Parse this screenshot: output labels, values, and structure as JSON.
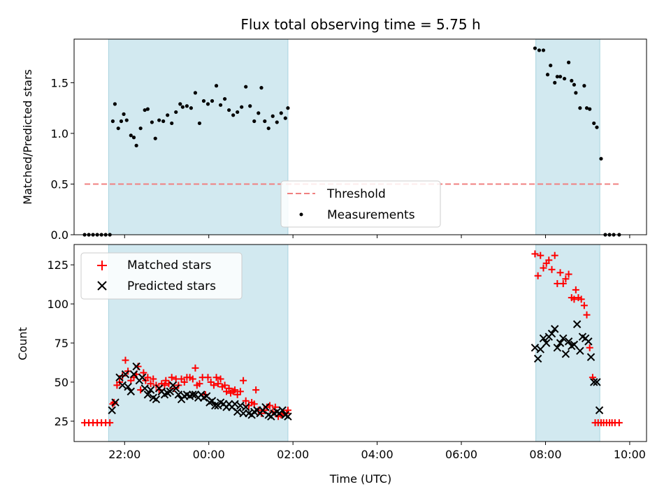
{
  "chart_data": [
    {
      "type": "scatter",
      "title": "Flux total observing time = 5.75 h",
      "xlabel": "",
      "ylabel": "Matched/Predicted stars",
      "x_unit": "hours since 2024-01-01 00:00 UTC",
      "xlim": [
        -3.2,
        10.4
      ],
      "ylim": [
        0,
        1.93
      ],
      "yticks": [
        0.0,
        0.5,
        1.0,
        1.5
      ],
      "ytick_labels": [
        "0.0",
        "0.5",
        "1.0",
        "1.5"
      ],
      "shaded_intervals": [
        [
          -2.38,
          1.88
        ],
        [
          7.77,
          9.29
        ]
      ],
      "shade_color": "#d2e9f0",
      "legend_position": "lower center",
      "series": [
        {
          "name": "Threshold",
          "kind": "dashed-line",
          "color": "#f08080",
          "x": [
            -2.95,
            9.75
          ],
          "y": [
            0.5,
            0.5
          ]
        },
        {
          "name": "Measurements",
          "kind": "dots",
          "color": "#000000",
          "x": [
            -2.95,
            -2.85,
            -2.75,
            -2.65,
            -2.55,
            -2.45,
            -2.35,
            -2.28,
            -2.23,
            -2.15,
            -2.08,
            -2.02,
            -1.95,
            -1.85,
            -1.78,
            -1.72,
            -1.62,
            -1.52,
            -1.45,
            -1.35,
            -1.27,
            -1.18,
            -1.08,
            -0.98,
            -0.88,
            -0.78,
            -0.68,
            -0.62,
            -0.52,
            -0.42,
            -0.32,
            -0.22,
            -0.12,
            -0.02,
            0.08,
            0.18,
            0.28,
            0.38,
            0.48,
            0.58,
            0.68,
            0.78,
            0.88,
            0.98,
            1.08,
            1.18,
            1.25,
            1.33,
            1.42,
            1.52,
            1.62,
            1.72,
            1.82,
            1.88,
            7.75,
            7.85,
            7.95,
            8.05,
            8.12,
            8.22,
            8.28,
            8.35,
            8.45,
            8.55,
            8.62,
            8.68,
            8.72,
            8.82,
            8.92,
            8.98,
            9.05,
            9.15,
            9.22,
            9.32,
            9.42,
            9.52,
            9.62,
            9.75
          ],
          "y": [
            0,
            0,
            0,
            0,
            0,
            0,
            0,
            1.12,
            1.29,
            1.05,
            1.12,
            1.19,
            1.13,
            0.98,
            0.96,
            0.88,
            1.05,
            1.23,
            1.24,
            1.11,
            0.95,
            1.13,
            1.12,
            1.18,
            1.1,
            1.21,
            1.29,
            1.26,
            1.27,
            1.25,
            1.4,
            1.1,
            1.32,
            1.29,
            1.32,
            1.47,
            1.28,
            1.34,
            1.23,
            1.18,
            1.21,
            1.26,
            1.46,
            1.27,
            1.12,
            1.2,
            1.45,
            1.12,
            1.05,
            1.17,
            1.11,
            1.2,
            1.15,
            1.25,
            1.84,
            1.82,
            1.82,
            1.58,
            1.67,
            1.5,
            1.56,
            1.56,
            1.54,
            1.7,
            1.52,
            1.48,
            1.4,
            1.25,
            1.47,
            1.25,
            1.24,
            1.1,
            1.06,
            0.75,
            0,
            0,
            0,
            0
          ]
        }
      ]
    },
    {
      "type": "scatter",
      "title": "",
      "xlabel": "Time (UTC)",
      "ylabel": "Count",
      "x_unit": "hours since 2024-01-01 00:00 UTC",
      "xlim": [
        -3.2,
        10.4
      ],
      "ylim": [
        12,
        138
      ],
      "yticks": [
        25,
        50,
        75,
        100,
        125
      ],
      "ytick_labels": [
        "25",
        "50",
        "75",
        "100",
        "125"
      ],
      "xticks": [
        -2,
        0,
        2,
        4,
        6,
        8,
        10
      ],
      "xtick_labels": [
        "22:00",
        "00:00",
        "02:00",
        "04:00",
        "06:00",
        "08:00",
        "10:00"
      ],
      "shaded_intervals": [
        [
          -2.38,
          1.88
        ],
        [
          7.77,
          9.29
        ]
      ],
      "shade_color": "#d2e9f0",
      "legend_position": "upper left",
      "series": [
        {
          "name": "Matched stars",
          "marker": "plus",
          "color": "#ff0000",
          "x": [
            -2.95,
            -2.85,
            -2.75,
            -2.65,
            -2.55,
            -2.45,
            -2.35,
            -2.28,
            -2.25,
            -2.18,
            -2.12,
            -2.05,
            -1.98,
            -1.92,
            -1.85,
            -1.78,
            -1.72,
            -1.68,
            -1.62,
            -1.55,
            -1.5,
            -1.45,
            -1.38,
            -1.32,
            -1.25,
            -1.18,
            -1.12,
            -1.05,
            -1.02,
            -0.95,
            -0.88,
            -0.82,
            -0.78,
            -0.72,
            -0.65,
            -0.58,
            -0.52,
            -0.45,
            -0.38,
            -0.32,
            -0.28,
            -0.22,
            -0.15,
            -0.08,
            -0.02,
            0.05,
            0.12,
            0.18,
            0.22,
            0.28,
            0.32,
            0.38,
            0.42,
            0.48,
            0.52,
            0.58,
            0.62,
            0.68,
            0.75,
            0.82,
            0.88,
            0.95,
            1.02,
            1.08,
            1.12,
            1.18,
            1.25,
            1.32,
            1.38,
            1.45,
            1.52,
            1.58,
            1.65,
            1.72,
            1.78,
            1.85,
            1.88,
            7.75,
            7.82,
            7.88,
            7.95,
            8.02,
            8.08,
            8.15,
            8.22,
            8.28,
            8.35,
            8.42,
            8.48,
            8.55,
            8.62,
            8.68,
            8.72,
            8.78,
            8.85,
            8.92,
            8.98,
            9.05,
            9.12,
            9.18,
            9.25,
            9.32,
            9.38,
            9.45,
            9.52,
            9.58,
            9.65,
            9.75
          ],
          "y": [
            24,
            24,
            24,
            24,
            24,
            24,
            24,
            36,
            37,
            48,
            50,
            54,
            64,
            57,
            51,
            53,
            55,
            60,
            45,
            56,
            51,
            53,
            49,
            52,
            48,
            45,
            49,
            48,
            51,
            49,
            53,
            46,
            52,
            48,
            52,
            50,
            53,
            53,
            52,
            59,
            48,
            49,
            53,
            42,
            53,
            50,
            48,
            53,
            49,
            52,
            47,
            48,
            44,
            46,
            43,
            44,
            45,
            42,
            44,
            51,
            38,
            35,
            37,
            36,
            45,
            32,
            30,
            32,
            34,
            35,
            31,
            34,
            28,
            29,
            30,
            30,
            32,
            132,
            118,
            131,
            123,
            126,
            128,
            122,
            131,
            113,
            120,
            113,
            116,
            119,
            104,
            103,
            109,
            104,
            103,
            99,
            93,
            72,
            53,
            24,
            24,
            24,
            24,
            24,
            24,
            24,
            24,
            24
          ]
        },
        {
          "name": "Predicted stars",
          "marker": "x",
          "color": "#000000",
          "x": [
            -2.3,
            -2.22,
            -2.12,
            -2.05,
            -1.98,
            -1.92,
            -1.85,
            -1.78,
            -1.72,
            -1.65,
            -1.58,
            -1.52,
            -1.45,
            -1.38,
            -1.32,
            -1.25,
            -1.18,
            -1.12,
            -1.05,
            -0.98,
            -0.92,
            -0.85,
            -0.78,
            -0.72,
            -0.65,
            -0.58,
            -0.52,
            -0.45,
            -0.38,
            -0.32,
            -0.25,
            -0.18,
            -0.12,
            -0.05,
            0.02,
            0.08,
            0.15,
            0.22,
            0.28,
            0.35,
            0.42,
            0.48,
            0.55,
            0.62,
            0.68,
            0.75,
            0.82,
            0.88,
            0.95,
            1.02,
            1.08,
            1.15,
            1.22,
            1.28,
            1.35,
            1.42,
            1.48,
            1.55,
            1.62,
            1.68,
            1.75,
            1.82,
            1.88,
            7.75,
            7.82,
            7.88,
            7.95,
            8.02,
            8.08,
            8.15,
            8.22,
            8.28,
            8.35,
            8.42,
            8.48,
            8.55,
            8.62,
            8.68,
            8.75,
            8.82,
            8.88,
            8.95,
            9.02,
            9.08,
            9.15,
            9.22,
            9.28
          ],
          "y": [
            32,
            37,
            53,
            48,
            55,
            47,
            44,
            55,
            60,
            51,
            53,
            46,
            42,
            45,
            40,
            39,
            46,
            44,
            42,
            43,
            44,
            48,
            46,
            42,
            39,
            41,
            42,
            41,
            42,
            42,
            40,
            42,
            40,
            41,
            37,
            38,
            35,
            35,
            37,
            36,
            34,
            36,
            34,
            36,
            31,
            35,
            30,
            34,
            30,
            29,
            31,
            32,
            30,
            32,
            34,
            29,
            28,
            30,
            31,
            30,
            32,
            29,
            28,
            72,
            65,
            71,
            78,
            75,
            79,
            81,
            84,
            72,
            75,
            78,
            68,
            76,
            73,
            74,
            87,
            70,
            79,
            78,
            76,
            66,
            50,
            50,
            32
          ]
        }
      ]
    }
  ]
}
